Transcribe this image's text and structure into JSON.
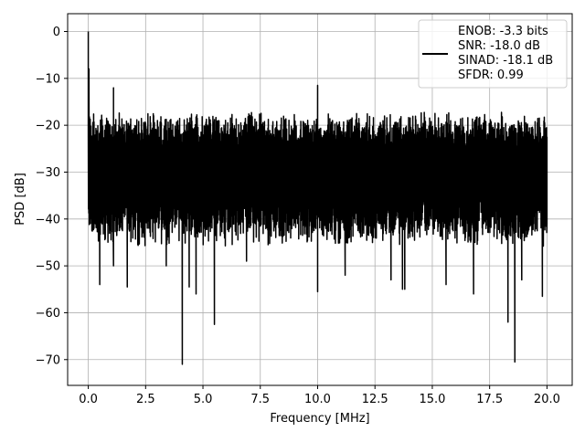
{
  "chart_data": {
    "type": "line",
    "title": "",
    "xlabel": "Frequency [MHz]",
    "ylabel": "PSD [dB]",
    "xlim": [
      -0.9,
      21.1
    ],
    "ylim": [
      -75.5,
      3.8
    ],
    "x_ticks": [
      0.0,
      2.5,
      5.0,
      7.5,
      10.0,
      12.5,
      15.0,
      17.5,
      20.0
    ],
    "x_tick_labels": [
      "0.0",
      "2.5",
      "5.0",
      "7.5",
      "10.0",
      "12.5",
      "15.0",
      "17.5",
      "20.0"
    ],
    "y_ticks": [
      0,
      -10,
      -20,
      -30,
      -40,
      -50,
      -60,
      -70
    ],
    "y_tick_labels": [
      "0",
      "−10",
      "−20",
      "−30",
      "−40",
      "−50",
      "−60",
      "−70"
    ],
    "grid": true,
    "legend_position": "top-right",
    "series": [
      {
        "name": "",
        "color": "#000000",
        "x_range": [
          0.0,
          20.0
        ],
        "upper_envelope_db": -20,
        "lower_envelope_db": -42,
        "notable_points": [
          {
            "x": 0.0,
            "y": 0.0
          },
          {
            "x": 0.03,
            "y": -8.0
          },
          {
            "x": 0.1,
            "y": -26.0
          },
          {
            "x": 0.2,
            "y": -34.0
          },
          {
            "x": 0.25,
            "y": -42.0
          },
          {
            "x": 0.5,
            "y": -54.0
          },
          {
            "x": 1.1,
            "y": -50.0
          },
          {
            "x": 1.1,
            "y": -12.0
          },
          {
            "x": 1.7,
            "y": -54.5
          },
          {
            "x": 3.4,
            "y": -50.0
          },
          {
            "x": 4.1,
            "y": -71.0
          },
          {
            "x": 4.4,
            "y": -54.5
          },
          {
            "x": 4.7,
            "y": -56.0
          },
          {
            "x": 5.5,
            "y": -62.5
          },
          {
            "x": 6.9,
            "y": -49.0
          },
          {
            "x": 10.0,
            "y": -11.5
          },
          {
            "x": 10.0,
            "y": -55.5
          },
          {
            "x": 11.2,
            "y": -52.0
          },
          {
            "x": 13.2,
            "y": -53.0
          },
          {
            "x": 13.7,
            "y": -55.0
          },
          {
            "x": 13.8,
            "y": -55.0
          },
          {
            "x": 15.6,
            "y": -54.0
          },
          {
            "x": 16.8,
            "y": -56.0
          },
          {
            "x": 18.3,
            "y": -62.0
          },
          {
            "x": 18.6,
            "y": -70.5
          },
          {
            "x": 18.9,
            "y": -53.0
          },
          {
            "x": 19.8,
            "y": -56.5
          },
          {
            "x": 20.0,
            "y": -41.0
          }
        ]
      }
    ],
    "legend_lines": [
      "ENOB: -3.3 bits",
      "SNR: -18.0 dB",
      "SINAD: -18.1 dB",
      "SFDR: 0.99"
    ]
  }
}
